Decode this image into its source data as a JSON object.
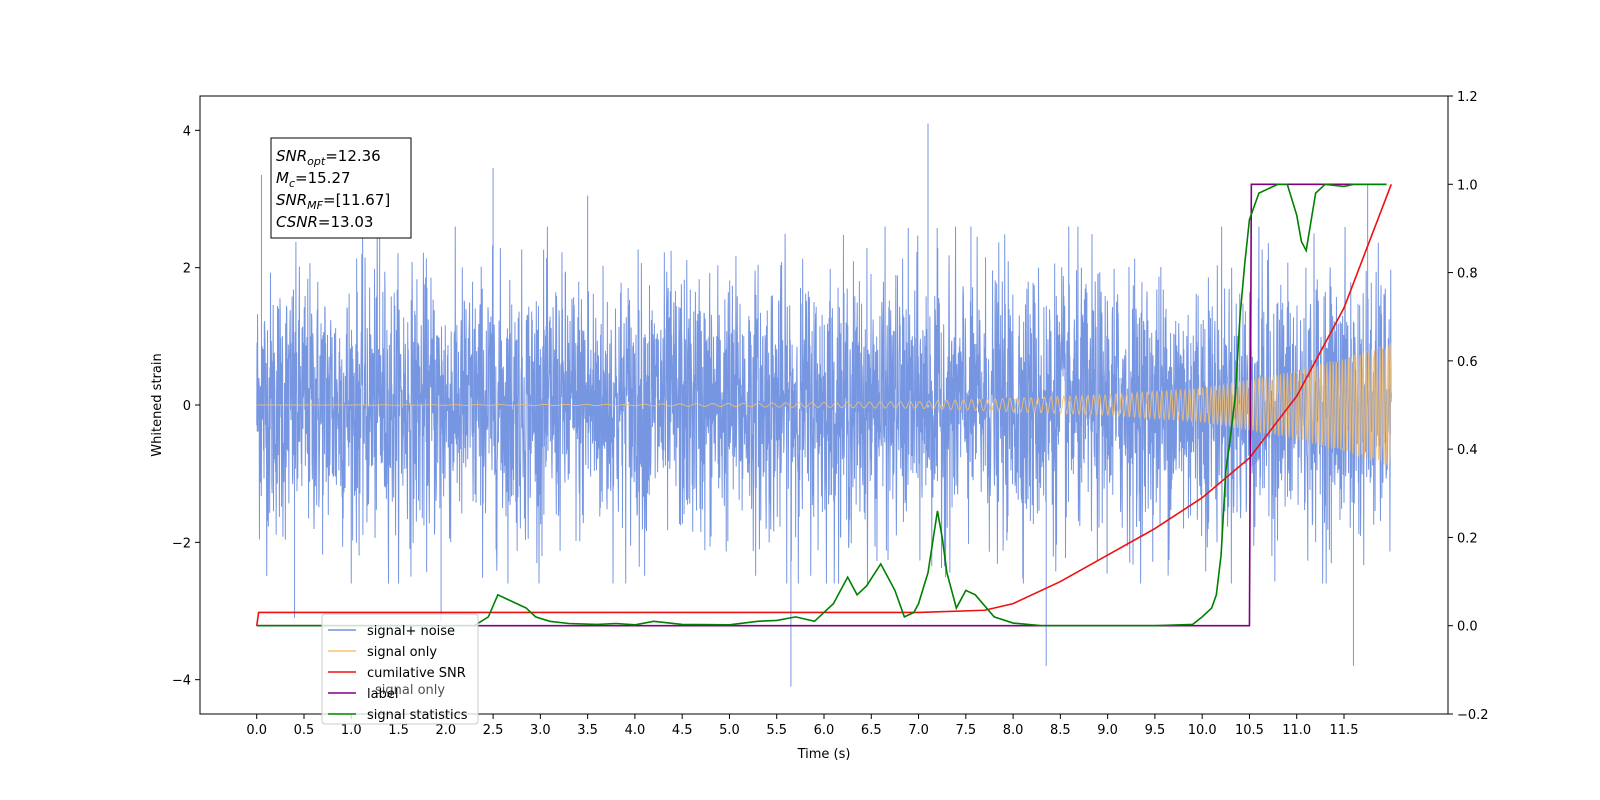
{
  "chart_data": {
    "type": "line",
    "xlabel": "Time (s)",
    "ylabel": "Whitened strain",
    "xlim": [
      -0.6,
      12.6
    ],
    "ylim": [
      -4.5,
      4.5
    ],
    "y2lim": [
      -0.2,
      1.2
    ],
    "x_ticks": [
      "0.0",
      "0.5",
      "1.0",
      "1.5",
      "2.0",
      "2.5",
      "3.0",
      "3.5",
      "4.0",
      "4.5",
      "5.0",
      "5.5",
      "6.0",
      "6.5",
      "7.0",
      "7.5",
      "8.0",
      "8.5",
      "9.0",
      "9.5",
      "10.0",
      "10.5",
      "11.0",
      "11.5"
    ],
    "y_ticks": [
      -4,
      -2,
      0,
      2,
      4
    ],
    "y2_ticks": [
      "−0.2",
      "0.0",
      "0.2",
      "0.4",
      "0.6",
      "0.8",
      "1.0",
      "1.2"
    ],
    "y2_tick_values": [
      -0.2,
      0.0,
      0.2,
      0.4,
      0.6,
      0.8,
      1.0,
      1.2
    ],
    "grid": false,
    "legend_position": "lower-left",
    "annotation": {
      "lines": [
        {
          "var": "SNR",
          "sub": "opt",
          "value": "=12.36"
        },
        {
          "var": "M",
          "sub": "c",
          "value": "=15.27"
        },
        {
          "var": "SNR",
          "sub": "MF",
          "value": "=[11.67]"
        },
        {
          "var": "CSNR",
          "sub": "",
          "value": "=13.03"
        }
      ]
    },
    "series": [
      {
        "name": "signal+ noise",
        "axis": "left",
        "color": "#7090e0",
        "kind": "noise",
        "x_range": [
          0.0,
          12.0
        ],
        "envelope_abs": 2.6,
        "extremes": [
          [
            0.05,
            3.35
          ],
          [
            0.4,
            -3.1
          ],
          [
            1.3,
            3.3
          ],
          [
            1.95,
            -3.15
          ],
          [
            2.5,
            3.45
          ],
          [
            3.5,
            3.05
          ],
          [
            5.65,
            -4.1
          ],
          [
            7.1,
            4.1
          ],
          [
            8.35,
            -3.8
          ],
          [
            11.6,
            -3.8
          ],
          [
            11.75,
            3.2
          ]
        ]
      },
      {
        "name": "signal only",
        "axis": "left",
        "color": "#f5c070",
        "kind": "chirp",
        "x_range": [
          0.0,
          12.0
        ],
        "amplitude_points": [
          [
            0.0,
            0.0
          ],
          [
            4.0,
            0.01
          ],
          [
            7.0,
            0.05
          ],
          [
            9.0,
            0.15
          ],
          [
            10.0,
            0.25
          ],
          [
            11.0,
            0.5
          ],
          [
            12.0,
            0.9
          ]
        ]
      },
      {
        "name": "cumilative SNR",
        "axis": "right",
        "color": "#ee1111",
        "x": [
          0.0,
          0.02,
          7.0,
          7.7,
          8.0,
          8.5,
          9.0,
          9.5,
          10.0,
          10.5,
          11.0,
          11.5,
          12.0
        ],
        "y": [
          0.0,
          0.03,
          0.03,
          0.035,
          0.05,
          0.1,
          0.16,
          0.22,
          0.29,
          0.38,
          0.52,
          0.72,
          1.0
        ]
      },
      {
        "name": "label",
        "axis": "right",
        "color": "#800080",
        "x": [
          0.0,
          10.5,
          10.52,
          11.95
        ],
        "y": [
          0.0,
          0.0,
          1.0,
          1.0
        ]
      },
      {
        "name": "signal statistics",
        "axis": "right",
        "color": "#008000",
        "x": [
          0.0,
          2.3,
          2.45,
          2.55,
          2.65,
          2.75,
          2.85,
          2.95,
          3.1,
          3.3,
          3.6,
          3.8,
          4.0,
          4.2,
          4.5,
          5.0,
          5.3,
          5.5,
          5.7,
          5.9,
          6.0,
          6.1,
          6.25,
          6.35,
          6.45,
          6.6,
          6.75,
          6.85,
          6.95,
          7.0,
          7.1,
          7.2,
          7.25,
          7.3,
          7.4,
          7.5,
          7.6,
          7.8,
          8.0,
          8.3,
          9.5,
          9.9,
          10.0,
          10.1,
          10.15,
          10.2,
          10.25,
          10.3,
          10.35,
          10.4,
          10.45,
          10.5,
          10.6,
          10.7,
          10.8,
          10.9,
          11.0,
          11.05,
          11.1,
          11.2,
          11.3,
          11.5,
          11.6,
          11.7,
          11.8,
          11.9,
          11.95
        ],
        "y": [
          0.0,
          0.0,
          0.02,
          0.07,
          0.06,
          0.05,
          0.04,
          0.02,
          0.01,
          0.005,
          0.003,
          0.005,
          0.002,
          0.01,
          0.003,
          0.002,
          0.01,
          0.012,
          0.02,
          0.01,
          0.03,
          0.05,
          0.11,
          0.07,
          0.09,
          0.14,
          0.08,
          0.02,
          0.03,
          0.05,
          0.12,
          0.26,
          0.2,
          0.12,
          0.04,
          0.08,
          0.07,
          0.02,
          0.006,
          0.0,
          0.0,
          0.003,
          0.02,
          0.04,
          0.07,
          0.16,
          0.35,
          0.43,
          0.52,
          0.7,
          0.82,
          0.92,
          0.98,
          0.99,
          1.0,
          1.0,
          0.93,
          0.87,
          0.85,
          0.98,
          1.0,
          0.995,
          1.0,
          1.0,
          1.0,
          1.0,
          1.0
        ]
      }
    ],
    "legend_overlap_text": "signal only",
    "legend": [
      "signal+ noise",
      "signal only",
      "cumilative SNR",
      "label",
      "signal statistics"
    ]
  }
}
